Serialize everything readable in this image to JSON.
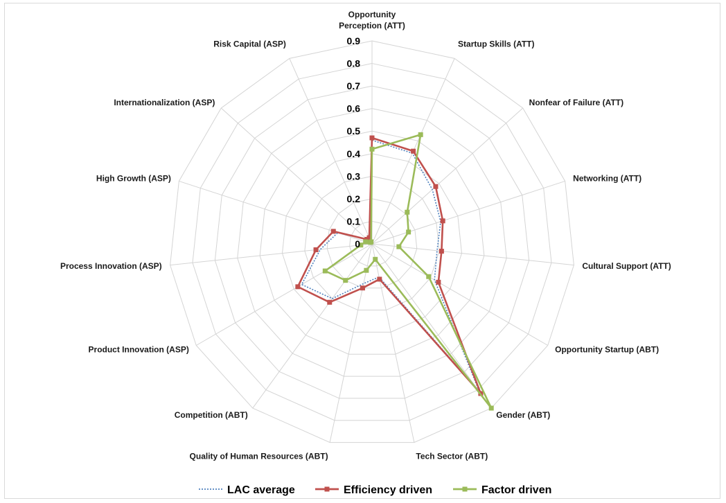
{
  "chart_data": {
    "type": "radar",
    "axes": [
      "Opportunity Perception (ATT)",
      "Startup Skills (ATT)",
      "Nonfear of Failure (ATT)",
      "Networking (ATT)",
      "Cultural Support (ATT)",
      "Opportunity Startup (ABT)",
      "Gender (ABT)",
      "Tech Sector (ABT)",
      "Quality of Human Resources (ABT)",
      "Competition (ABT)",
      "Product Innovation (ASP)",
      "Process Innovation (ASP)",
      "High Growth (ASP)",
      "Internationalization (ASP)",
      "Risk Capital (ASP)"
    ],
    "axis_label_lines": [
      [
        "Opportunity",
        "Perception (ATT)"
      ],
      [
        "Startup Skills (ATT)"
      ],
      [
        "Nonfear of Failure (ATT)"
      ],
      [
        "Networking (ATT)"
      ],
      [
        "Cultural Support (ATT)"
      ],
      [
        "Opportunity Startup (ABT)"
      ],
      [
        "Gender (ABT)"
      ],
      [
        "Tech Sector (ABT)"
      ],
      [
        "Quality of Human Resources (ABT)"
      ],
      [
        "Competition (ABT)"
      ],
      [
        "Product Innovation (ASP)"
      ],
      [
        "Process Innovation (ASP)"
      ],
      [
        "High Growth (ASP)"
      ],
      [
        "Internationalization (ASP)"
      ],
      [
        "Risk Capital (ASP)"
      ]
    ],
    "range": [
      0,
      0.9
    ],
    "ticks": [
      "0",
      "0.1",
      "0.2",
      "0.3",
      "0.4",
      "0.5",
      "0.6",
      "0.7",
      "0.8",
      "0.9"
    ],
    "tick_values": [
      0,
      0.1,
      0.2,
      0.3,
      0.4,
      0.5,
      0.6,
      0.7,
      0.8,
      0.9
    ],
    "grid": true,
    "legend_position": "bottom",
    "series": [
      {
        "name": "LAC average",
        "color": "#4f81bd",
        "style": "dotted",
        "values": [
          0.46,
          0.44,
          0.36,
          0.32,
          0.29,
          0.32,
          0.81,
          0.15,
          0.18,
          0.3,
          0.36,
          0.23,
          0.16,
          0.03,
          0.02
        ]
      },
      {
        "name": "Efficiency driven",
        "color": "#c0504d",
        "style": "solid",
        "values": [
          0.47,
          0.45,
          0.38,
          0.33,
          0.31,
          0.34,
          0.82,
          0.16,
          0.2,
          0.32,
          0.38,
          0.25,
          0.18,
          0.03,
          0.03
        ]
      },
      {
        "name": "Factor driven",
        "color": "#9bbb59",
        "style": "solid",
        "values": [
          0.42,
          0.53,
          0.21,
          0.17,
          0.12,
          0.29,
          0.9,
          0.07,
          0.12,
          0.2,
          0.24,
          0.05,
          0.03,
          0.01,
          0.01
        ]
      }
    ]
  }
}
